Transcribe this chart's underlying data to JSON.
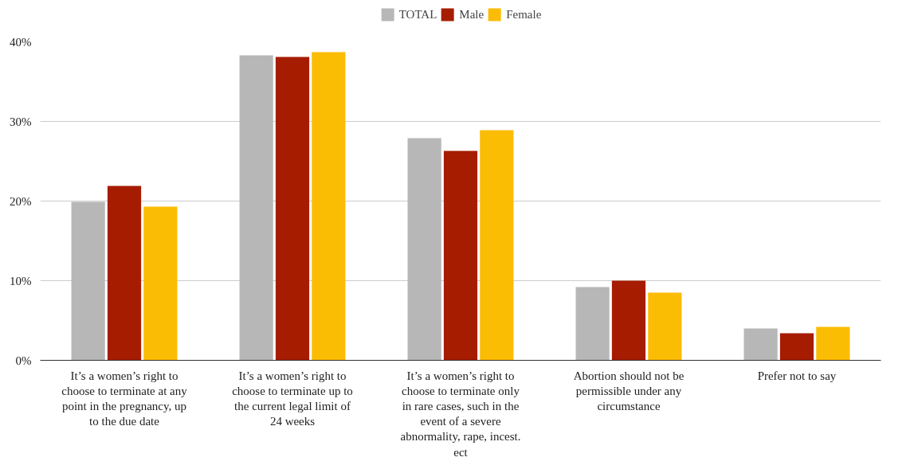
{
  "chart_data": {
    "type": "bar",
    "categories": [
      "It’s a women’s right to choose to terminate at any point in the pregnancy, up to the due date",
      "It’s a women’s right to choose to terminate up to the current legal limit of 24 weeks",
      "It’s a women’s right to choose to terminate only in rare cases, such in the event of a severe abnormality, rape, incest. ect",
      "Abortion should not be permissible under any circumstance",
      "Prefer not to say"
    ],
    "series": [
      {
        "name": "TOTAL",
        "color": "#b7b7b7",
        "values": [
          19.9,
          38.3,
          27.9,
          9.2,
          4.0
        ]
      },
      {
        "name": "Male",
        "color": "#a61c00",
        "values": [
          21.9,
          38.1,
          26.3,
          10.0,
          3.4
        ]
      },
      {
        "name": "Female",
        "color": "#fbbc04",
        "values": [
          19.3,
          38.7,
          28.9,
          8.5,
          4.2
        ]
      }
    ],
    "ylim": [
      0,
      40
    ],
    "yticks": [
      {
        "value": 0,
        "label": "0%"
      },
      {
        "value": 10,
        "label": "10%"
      },
      {
        "value": 20,
        "label": "20%"
      },
      {
        "value": 30,
        "label": "30%"
      },
      {
        "value": 40,
        "label": "40%"
      }
    ],
    "grid": "y",
    "legend": "top"
  }
}
